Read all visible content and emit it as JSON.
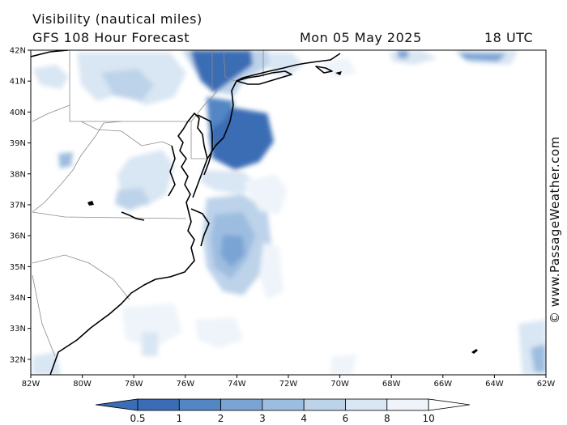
{
  "header": {
    "title": "Visibility (nautical miles)",
    "model": "GFS 108 Hour Forecast",
    "date": "Mon 05 May 2025",
    "time": "18 UTC"
  },
  "credit": "© www.PassageWeather.com",
  "map": {
    "lon_range": [
      -82,
      -62
    ],
    "lat_range": [
      31.5,
      42
    ],
    "lat_labels": [
      "42N",
      "41N",
      "40N",
      "39N",
      "38N",
      "37N",
      "36N",
      "35N",
      "34N",
      "33N",
      "32N"
    ],
    "lat_values": [
      42,
      41,
      40,
      39,
      38,
      37,
      36,
      35,
      34,
      33,
      32
    ],
    "lon_labels": [
      "82W",
      "80W",
      "78W",
      "76W",
      "74W",
      "72W",
      "70W",
      "68W",
      "66W",
      "64W",
      "62W"
    ],
    "lon_values": [
      -82,
      -80,
      -78,
      -76,
      -74,
      -72,
      -70,
      -68,
      -66,
      -64,
      -62
    ]
  },
  "legend": {
    "labels": [
      "0.5",
      "1",
      "2",
      "3",
      "4",
      "6",
      "8",
      "10"
    ],
    "colors": [
      "#3a6db5",
      "#5286c4",
      "#7aa4d4",
      "#9dbde0",
      "#bdd3ea",
      "#d9e6f3",
      "#eef4fa",
      "#ffffff"
    ]
  }
}
